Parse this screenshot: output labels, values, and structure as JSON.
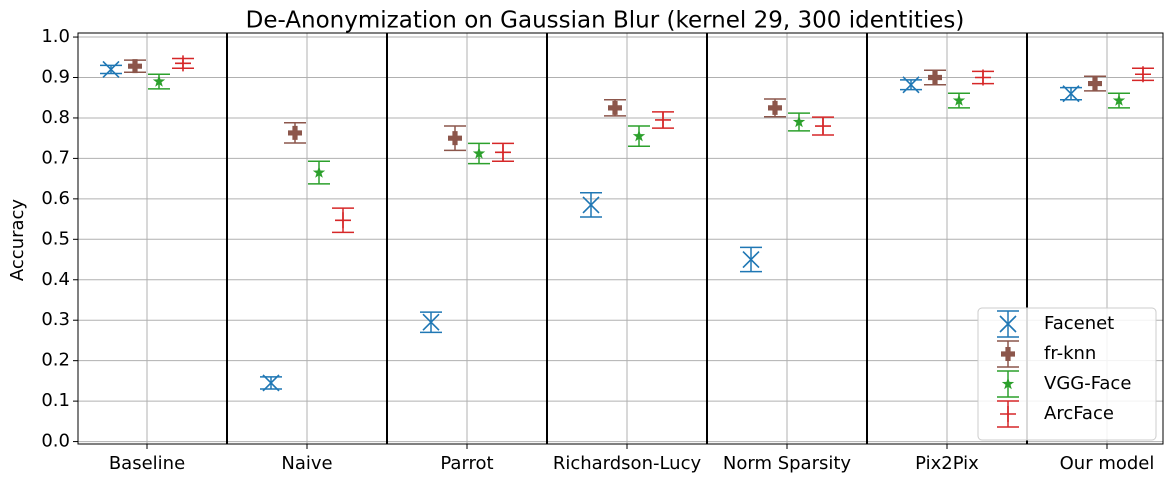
{
  "chart_data": {
    "type": "errorbar",
    "title": "De-Anonymization on Gaussian Blur (kernel 29, 300 identities)",
    "y_label": "Accuracy",
    "categories": [
      "Baseline",
      "Naive",
      "Parrot",
      "Richardson-Lucy",
      "Norm Sparsity",
      "Pix2Pix",
      "Our model"
    ],
    "series": [
      {
        "name": "Facenet",
        "color": "#1f77b4",
        "marker": "x",
        "values": [
          0.92,
          0.145,
          0.295,
          0.585,
          0.45,
          0.882,
          0.86
        ],
        "errors": [
          0.01,
          0.015,
          0.025,
          0.03,
          0.03,
          0.012,
          0.015
        ]
      },
      {
        "name": "fr-knn",
        "color": "#8c564b",
        "marker": "P",
        "values": [
          0.928,
          0.763,
          0.75,
          0.825,
          0.825,
          0.9,
          0.885
        ],
        "errors": [
          0.015,
          0.025,
          0.03,
          0.02,
          0.022,
          0.018,
          0.018
        ]
      },
      {
        "name": "VGG-Face",
        "color": "#2ca02c",
        "marker": "*",
        "values": [
          0.89,
          0.665,
          0.712,
          0.755,
          0.79,
          0.843,
          0.843
        ],
        "errors": [
          0.018,
          0.028,
          0.025,
          0.025,
          0.022,
          0.018,
          0.018
        ]
      },
      {
        "name": "ArcFace",
        "color": "#d62728",
        "marker": "+",
        "values": [
          0.935,
          0.547,
          0.715,
          0.795,
          0.78,
          0.9,
          0.908
        ],
        "errors": [
          0.012,
          0.03,
          0.022,
          0.02,
          0.022,
          0.015,
          0.015
        ]
      }
    ],
    "ylim": [
      -0.006,
      1.01
    ],
    "yticks": [
      {
        "value": 0,
        "label": "0.0"
      },
      0.1,
      0.2,
      0.3,
      0.4,
      0.5,
      0.6,
      0.7,
      0.8,
      0.9,
      {
        "value": 1,
        "label": "1.0"
      }
    ],
    "grid": true,
    "separators": true,
    "legend": "lower right"
  }
}
